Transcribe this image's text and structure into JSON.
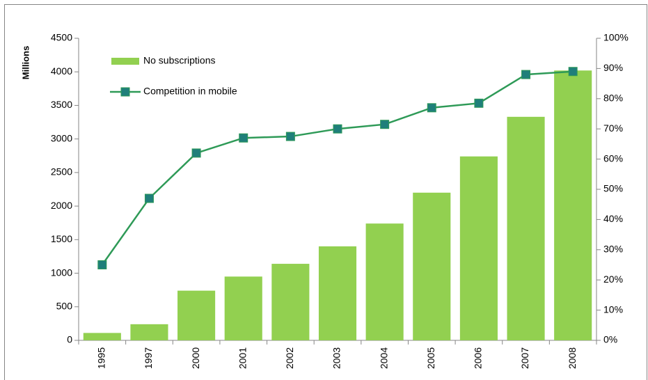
{
  "chart_data": {
    "type": "bar_line",
    "ylabel": "Millions",
    "categories": [
      "1995",
      "1997",
      "2000",
      "2001",
      "2002",
      "2003",
      "2004",
      "2005",
      "2006",
      "2007",
      "2008"
    ],
    "series": [
      {
        "name": "No subscriptions",
        "type": "bar",
        "color": "#92d050",
        "values": [
          110,
          240,
          740,
          950,
          1140,
          1400,
          1740,
          2200,
          2740,
          3330,
          4020
        ]
      },
      {
        "name": "Competition in mobile",
        "type": "line",
        "axis": "y2",
        "color": "#2e9a57",
        "marker_color": "#1f7f7a",
        "values": [
          25,
          47,
          62,
          67,
          67.5,
          70,
          71.5,
          77,
          78.5,
          88,
          89
        ]
      }
    ],
    "ylim": [
      0,
      4500
    ],
    "yticks": [
      0,
      500,
      1000,
      1500,
      2000,
      2500,
      3000,
      3500,
      4000,
      4500
    ],
    "y2lim": [
      0,
      100
    ],
    "y2ticks": [
      {
        "value": 0,
        "label": "0%"
      },
      {
        "value": 10,
        "label": "10%"
      },
      {
        "value": 20,
        "label": "20%"
      },
      {
        "value": 30,
        "label": "30%"
      },
      {
        "value": 40,
        "label": "40%"
      },
      {
        "value": 50,
        "label": "50%"
      },
      {
        "value": 60,
        "label": "60%"
      },
      {
        "value": 70,
        "label": "70%"
      },
      {
        "value": 80,
        "label": "80%"
      },
      {
        "value": 90,
        "label": "90%"
      },
      {
        "value": 100,
        "label": "100%"
      }
    ],
    "legend": "upper left"
  }
}
